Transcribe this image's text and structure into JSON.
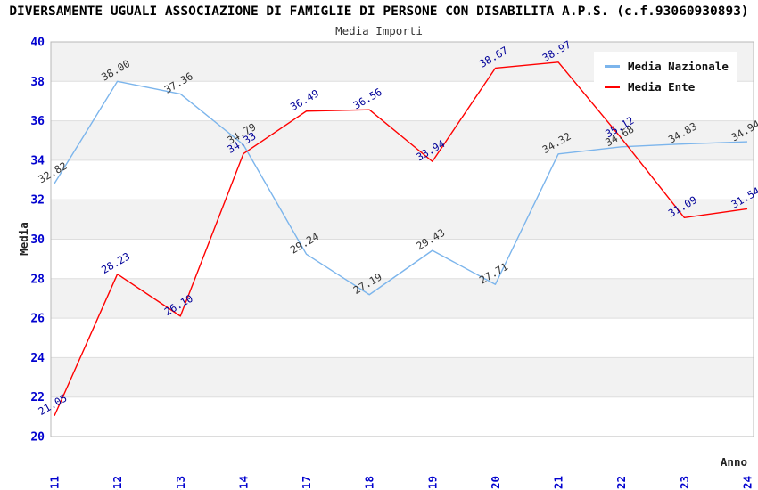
{
  "chart_data": {
    "type": "line",
    "title": "DIVERSAMENTE UGUALI ASSOCIAZIONE DI FAMIGLIE DI PERSONE CON DISABILITA A.P.S. (c.f.93060930893)",
    "subtitle": "Media Importi",
    "xlabel": "Anno",
    "ylabel": "Media",
    "ylim": [
      20,
      40
    ],
    "ytick_step": 2,
    "grid": "horizontal-bands",
    "legend_position": "top-right",
    "categories": [
      "2011",
      "2012",
      "2013",
      "2014",
      "2017",
      "2018",
      "2019",
      "2020",
      "2021",
      "2022",
      "2023",
      "2024"
    ],
    "series": [
      {
        "name": "Media Nazionale",
        "color": "#7cb5ec",
        "label_color": "#333333",
        "values": [
          32.82,
          38.0,
          37.36,
          34.79,
          29.24,
          27.19,
          29.43,
          27.71,
          34.32,
          34.68,
          34.83,
          34.94
        ]
      },
      {
        "name": "Media Ente",
        "color": "#ff0000",
        "label_color": "#000099",
        "values": [
          21.05,
          28.23,
          26.1,
          34.33,
          36.49,
          36.56,
          33.94,
          38.67,
          38.97,
          35.12,
          31.09,
          31.54
        ]
      }
    ],
    "colors": {
      "band": "#f2f2f2",
      "gridline": "#dedede",
      "plot_border": "#b8b8b8",
      "tick_label": "#0202cf",
      "axis_title": "#222222"
    }
  }
}
